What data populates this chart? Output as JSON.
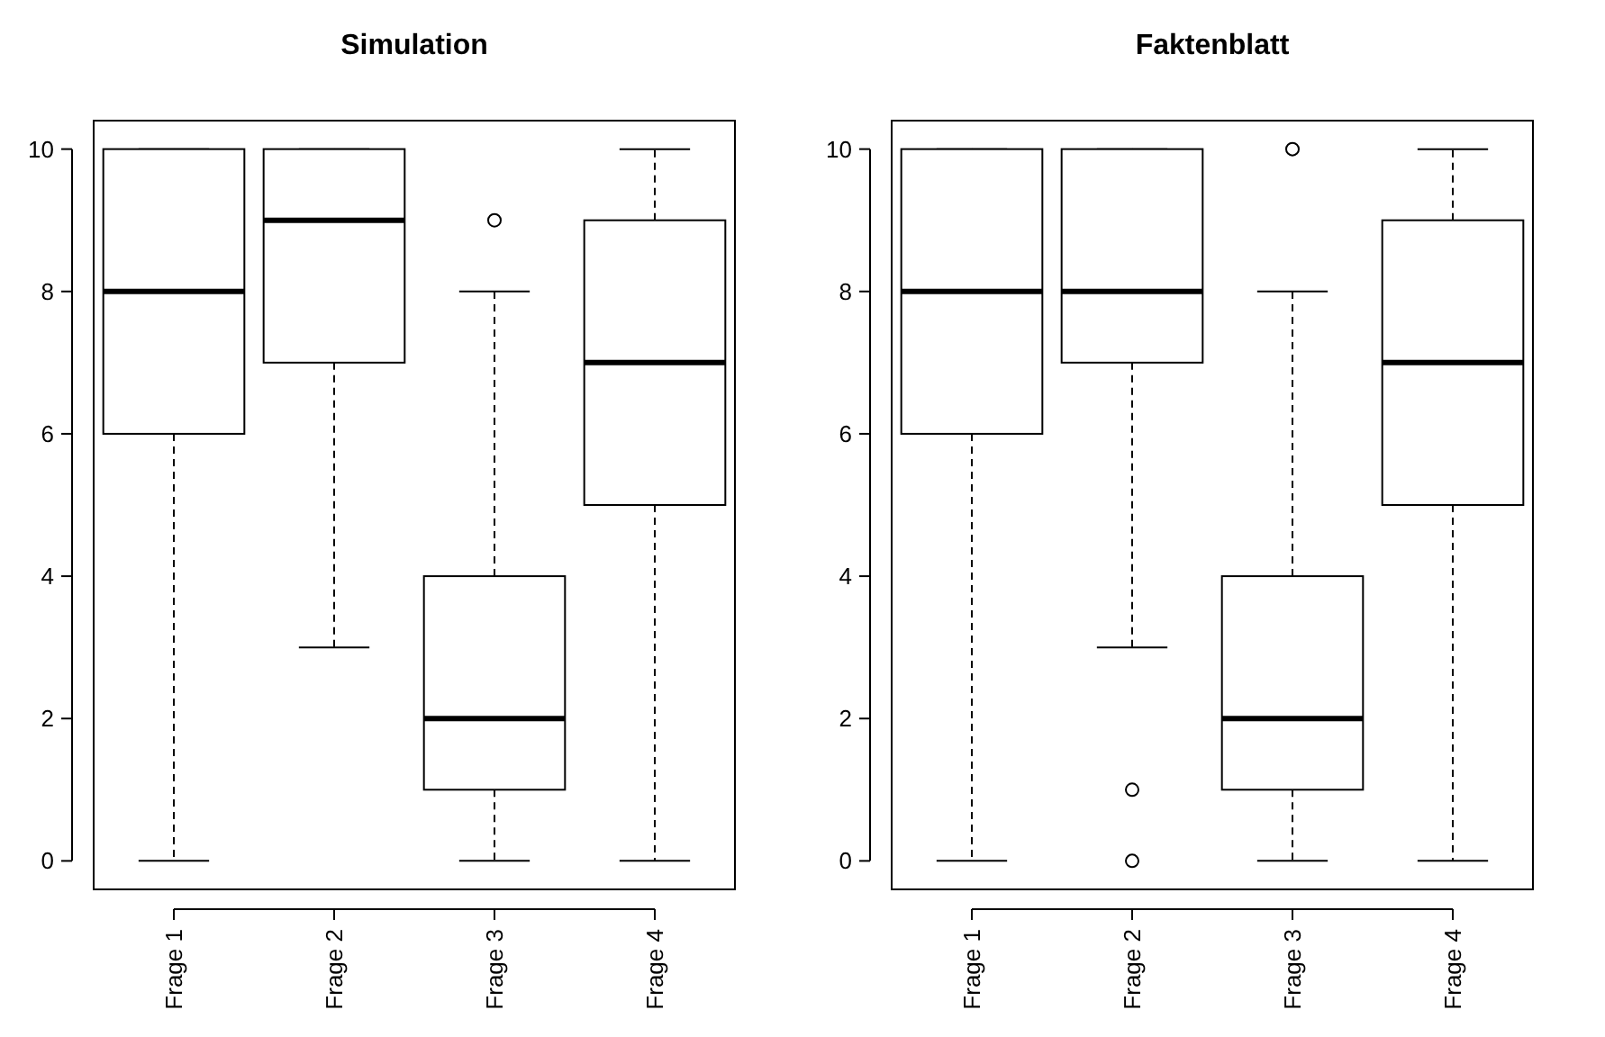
{
  "chart_data": [
    {
      "type": "box",
      "title": "Simulation",
      "categories": [
        "Frage 1",
        "Frage 2",
        "Frage 3",
        "Frage 4"
      ],
      "ylim": [
        -0.4,
        10.4
      ],
      "yticks": [
        0,
        2,
        4,
        6,
        8,
        10
      ],
      "boxes": [
        {
          "low": 0,
          "q1": 6,
          "median": 8,
          "q3": 10,
          "high": 10
        },
        {
          "low": 3,
          "q1": 7,
          "median": 9,
          "q3": 10,
          "high": 10
        },
        {
          "low": 0,
          "q1": 1,
          "median": 2,
          "q3": 4,
          "high": 8,
          "outliers": [
            9
          ]
        },
        {
          "low": 0,
          "q1": 5,
          "median": 7,
          "q3": 9,
          "high": 10
        }
      ]
    },
    {
      "type": "box",
      "title": "Faktenblatt",
      "categories": [
        "Frage 1",
        "Frage 2",
        "Frage 3",
        "Frage 4"
      ],
      "ylim": [
        -0.4,
        10.4
      ],
      "yticks": [
        0,
        2,
        4,
        6,
        8,
        10
      ],
      "boxes": [
        {
          "low": 0,
          "q1": 6,
          "median": 8,
          "q3": 10,
          "high": 10
        },
        {
          "low": 3,
          "q1": 7,
          "median": 8,
          "q3": 10,
          "high": 10,
          "outliers": [
            1,
            0
          ]
        },
        {
          "low": 0,
          "q1": 1,
          "median": 2,
          "q3": 4,
          "high": 8,
          "outliers": [
            10
          ]
        },
        {
          "low": 0,
          "q1": 5,
          "median": 7,
          "q3": 9,
          "high": 10
        }
      ]
    }
  ]
}
